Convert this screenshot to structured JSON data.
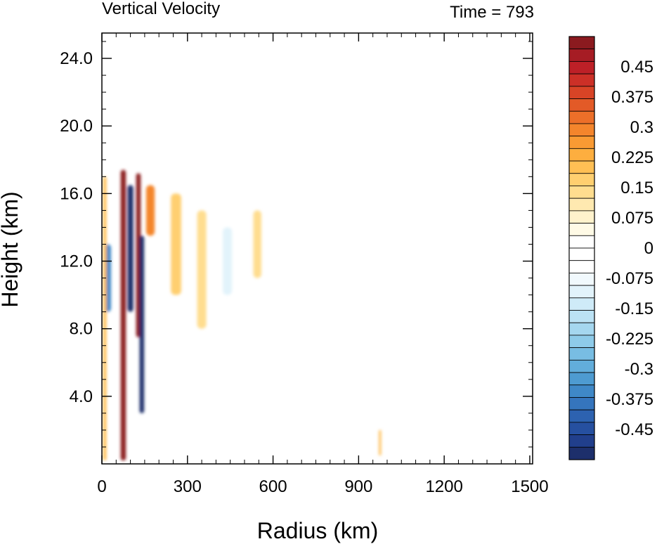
{
  "chart_data": {
    "type": "heatmap",
    "title": "Vertical Velocity",
    "subtitle": "Time = 793",
    "xlabel": "Radius (km)",
    "ylabel": "Height (km)",
    "xlim": [
      0,
      1510
    ],
    "ylim": [
      0,
      25.5
    ],
    "x_ticks": [
      {
        "value": 0,
        "label": "0"
      },
      {
        "value": 300,
        "label": "300"
      },
      {
        "value": 600,
        "label": "600"
      },
      {
        "value": 900,
        "label": "900"
      },
      {
        "value": 1200,
        "label": "1200"
      },
      {
        "value": 1500,
        "label": "1500"
      }
    ],
    "y_ticks": [
      {
        "value": 4,
        "label": "4.0"
      },
      {
        "value": 8,
        "label": "8.0"
      },
      {
        "value": 12,
        "label": "12.0"
      },
      {
        "value": 16,
        "label": "16.0"
      },
      {
        "value": 20,
        "label": "20.0"
      },
      {
        "value": 24,
        "label": "24.0"
      }
    ],
    "colorbar": {
      "colors": [
        "#1d2f6b",
        "#213f8c",
        "#2650a0",
        "#2d62b0",
        "#3575bd",
        "#3f88c7",
        "#4e9bd1",
        "#62addb",
        "#78bde3",
        "#8ecbe9",
        "#a5d7ef",
        "#bbe2f4",
        "#cfebf8",
        "#e2f3fb",
        "#f1f9fd",
        "#ffffff",
        "#ffffff",
        "#ffffff",
        "#fffae6",
        "#fff2cc",
        "#ffe9b0",
        "#ffdd8f",
        "#ffcf70",
        "#ffbf54",
        "#fdae3f",
        "#f99a33",
        "#f4852c",
        "#ec6f29",
        "#e35a27",
        "#d84426",
        "#cc3027",
        "#bd2027",
        "#a61c24",
        "#8b1a1f"
      ],
      "ticks": [
        {
          "value": 0.45,
          "label": "0.45"
        },
        {
          "value": 0.375,
          "label": "0.375"
        },
        {
          "value": 0.3,
          "label": "0.3"
        },
        {
          "value": 0.225,
          "label": "0.225"
        },
        {
          "value": 0.15,
          "label": "0.15"
        },
        {
          "value": 0.075,
          "label": "0.075"
        },
        {
          "value": 0,
          "label": "0"
        },
        {
          "value": -0.075,
          "label": "-0.075"
        },
        {
          "value": -0.15,
          "label": "-0.15"
        },
        {
          "value": -0.225,
          "label": "-0.225"
        },
        {
          "value": -0.3,
          "label": "-0.3"
        },
        {
          "value": -0.375,
          "label": "-0.375"
        },
        {
          "value": -0.45,
          "label": "-0.45"
        }
      ]
    },
    "features": [
      {
        "kind": "updraft",
        "x": 75,
        "x_half_width": 9,
        "z_bottom": 0.2,
        "z_top": 17.4,
        "w": 0.55
      },
      {
        "kind": "updraft",
        "x": 128,
        "x_half_width": 8,
        "z_bottom": 7.5,
        "z_top": 17.2,
        "w": 0.55
      },
      {
        "kind": "downdraft",
        "x": 100,
        "x_half_width": 10,
        "z_bottom": 9.0,
        "z_top": 16.5,
        "w": -0.5
      },
      {
        "kind": "downdraft",
        "x": 140,
        "x_half_width": 8,
        "z_bottom": 3.0,
        "z_top": 13.5,
        "w": -0.5
      },
      {
        "kind": "downdraft",
        "x": 20,
        "x_half_width": 12,
        "z_bottom": 9.0,
        "z_top": 13.0,
        "w": -0.35
      },
      {
        "kind": "updraft",
        "x": 10,
        "x_half_width": 6,
        "z_bottom": 0.2,
        "z_top": 17.0,
        "w": 0.2
      },
      {
        "kind": "updraft",
        "x": 170,
        "x_half_width": 15,
        "z_bottom": 13.5,
        "z_top": 16.5,
        "w": 0.3
      },
      {
        "kind": "updraft",
        "x": 260,
        "x_half_width": 18,
        "z_bottom": 10.0,
        "z_top": 16.0,
        "w": 0.18
      },
      {
        "kind": "updraft",
        "x": 350,
        "x_half_width": 16,
        "z_bottom": 8.0,
        "z_top": 15.0,
        "w": 0.15
      },
      {
        "kind": "updraft",
        "x": 545,
        "x_half_width": 14,
        "z_bottom": 11.0,
        "z_top": 15.0,
        "w": 0.15
      },
      {
        "kind": "downdraft",
        "x": 440,
        "x_half_width": 16,
        "z_bottom": 10.0,
        "z_top": 14.0,
        "w": -0.1
      },
      {
        "kind": "updraft",
        "x": 975,
        "x_half_width": 4,
        "z_bottom": 0.5,
        "z_top": 2.0,
        "w": 0.2
      }
    ]
  }
}
